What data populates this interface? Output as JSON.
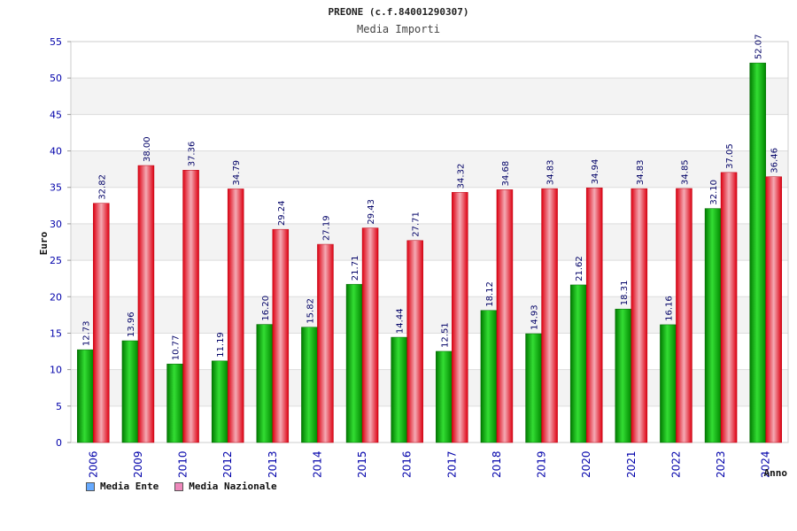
{
  "chart_data": {
    "type": "bar",
    "title": "PREONE (c.f.84001290307)",
    "subtitle": "Media Importi",
    "xlabel": "Anno",
    "ylabel": "Euro",
    "ylim": [
      0,
      55
    ],
    "ytick_step": 5,
    "grid": true,
    "legend_position": "bottom-left",
    "categories": [
      "2006",
      "2009",
      "2010",
      "2012",
      "2013",
      "2014",
      "2015",
      "2016",
      "2017",
      "2018",
      "2019",
      "2020",
      "2021",
      "2022",
      "2023",
      "2024"
    ],
    "series": [
      {
        "name": "Media Ente",
        "color": "#00aa00",
        "legend_color": "#66aaff",
        "values": [
          12.73,
          13.96,
          10.77,
          11.19,
          16.2,
          15.82,
          21.71,
          14.44,
          12.51,
          18.12,
          14.93,
          21.62,
          18.31,
          16.16,
          32.1,
          52.07
        ],
        "labels": [
          "12.73",
          "13.96",
          "10.77",
          "11.19",
          "16.20",
          "15.82",
          "21.71",
          "14.44",
          "12.51",
          "18.12",
          "14.93",
          "21.62",
          "18.31",
          "16.16",
          "32.10",
          "52.07"
        ]
      },
      {
        "name": "Media Nazionale",
        "color": "#ee1122",
        "legend_color": "#ee88bb",
        "values": [
          32.82,
          38.0,
          37.36,
          34.79,
          29.24,
          27.19,
          29.43,
          27.71,
          34.32,
          34.68,
          34.83,
          34.94,
          34.83,
          34.85,
          37.05,
          36.46
        ],
        "labels": [
          "32.82",
          "38.00",
          "37.36",
          "34.79",
          "29.24",
          "27.19",
          "29.43",
          "27.71",
          "34.32",
          "34.68",
          "34.83",
          "34.94",
          "34.83",
          "34.85",
          "37.05",
          "36.46"
        ]
      }
    ]
  }
}
